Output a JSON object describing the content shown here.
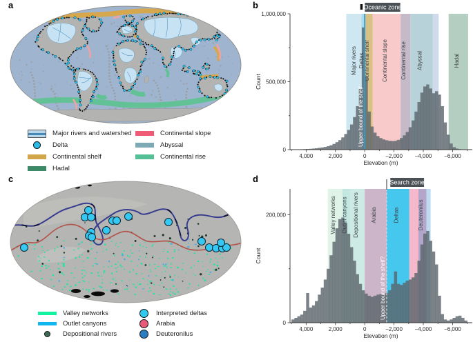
{
  "figure": {
    "panel_labels": {
      "a": "a",
      "b": "b",
      "c": "c",
      "d": "d"
    }
  },
  "legend_a": {
    "left": [
      {
        "label": "Major rivers and watershed",
        "fill": "#b9d7ea",
        "line": "#4689b7"
      },
      {
        "label": "Delta",
        "fill": "#2bbce8"
      },
      {
        "label": "Continental shelf",
        "fill": "#d2a54b"
      },
      {
        "label": "Hadal",
        "fill": "#3e8a68"
      }
    ],
    "right": [
      {
        "label": "Continental slope",
        "fill": "#ef5a75"
      },
      {
        "label": "Abyssal",
        "fill": "#7dabb5"
      },
      {
        "label": "Continental rise",
        "fill": "#55c095"
      }
    ]
  },
  "legend_c": {
    "left": [
      {
        "label": "Valley networks",
        "fill": "#13f2a0"
      },
      {
        "label": "Outlet canyons",
        "fill": "#10b6f0"
      },
      {
        "label": "Depositional rivers",
        "fill": "#3e6b55"
      }
    ],
    "right": [
      {
        "label": "Interpreted deltas",
        "fill": "#2fc9ee"
      },
      {
        "label": "Arabia",
        "fill": "#e85a78"
      },
      {
        "label": "Deuteronilus",
        "fill": "#2b7cc0"
      }
    ]
  },
  "map_a": {
    "ocean_color": "#9fb4cf",
    "land_color": "#b3b3b1",
    "watershed_color": "#c7e2f3",
    "river_color": "#4f94c4",
    "delta_color": "#2ec4f0",
    "shelf_color": "#d6a74c",
    "rise_color": "#63c295",
    "slope_color": "#f0a2a2"
  },
  "map_c": {
    "surface_color": "#b5b5b3",
    "valley_color": "#16e8a0",
    "canyon_color": "#35a8f0",
    "depositional_color": "#1e3a2c",
    "arabia_line_color": "#b2564d",
    "deuteronilus_line_color": "#383c8e",
    "delta_color": "#35c8f2",
    "delta_points": [
      [
        21,
        97
      ],
      [
        114,
        43
      ],
      [
        109,
        53
      ],
      [
        118,
        53
      ],
      [
        149,
        58
      ],
      [
        155,
        58
      ],
      [
        172,
        52
      ],
      [
        140,
        72
      ],
      [
        118,
        75
      ],
      [
        115,
        80
      ],
      [
        119,
        82
      ],
      [
        230,
        60
      ],
      [
        278,
        88
      ],
      [
        289,
        97
      ],
      [
        299,
        98
      ],
      [
        308,
        98
      ],
      [
        314,
        97
      ],
      [
        306,
        90
      ]
    ]
  },
  "chart_data": [
    {
      "id": "b",
      "type": "bar",
      "title": "",
      "xlabel": "Elevation (m)",
      "ylabel": "Count",
      "x_domain": [
        5100,
        -7300
      ],
      "y_domain": [
        0,
        1000000
      ],
      "x_major_ticks": [
        4000,
        2000,
        0,
        -2000,
        -4000,
        -6000
      ],
      "x_minor_step": 1000,
      "y_ticks": [
        {
          "v": 0,
          "label": "0"
        },
        {
          "v": 250000,
          "label": ""
        },
        {
          "v": 500000,
          "label": "500,000"
        },
        {
          "v": 750000,
          "label": ""
        },
        {
          "v": 1000000,
          "label": "1,000,000"
        }
      ],
      "bar_color": "rgba(90,100,106,0.8)",
      "bars": {
        "x_start": 4900,
        "x_step": -200,
        "bin_width": 200,
        "counts": [
          1000,
          1500,
          2000,
          3000,
          4000,
          5000,
          6000,
          8000,
          10000,
          13000,
          16000,
          20000,
          25000,
          32000,
          42000,
          55000,
          70000,
          90000,
          115000,
          145000,
          185000,
          240000,
          320000,
          450000,
          900000,
          540000,
          280000,
          170000,
          125000,
          100000,
          85000,
          75000,
          69000,
          65000,
          63000,
          65000,
          72000,
          85000,
          105000,
          130000,
          165000,
          215000,
          280000,
          350000,
          420000,
          465000,
          480000,
          450000,
          415000,
          430000,
          405000,
          320000,
          200000,
          110000,
          45000,
          18000,
          8000,
          4000,
          2000,
          1000
        ]
      },
      "zones": [
        {
          "label": "Major rivers",
          "from": 1260,
          "to": 0,
          "color": "#cfe7f1"
        },
        {
          "label": "Deltas",
          "from": 220,
          "to": 0,
          "color": "#aedbeb"
        },
        {
          "label": "Continental shelf",
          "from": 0,
          "to": -550,
          "color": "#d9c185"
        },
        {
          "label": "Continental slope",
          "from": -550,
          "to": -2450,
          "color": "#f9caca"
        },
        {
          "label": "Continental rise",
          "from": -2450,
          "to": -3120,
          "color": "#c6bac9"
        },
        {
          "label": "Abyssal",
          "from": -3120,
          "to": -4650,
          "color": "#b7d3d9"
        },
        {
          "label": "",
          "from": -4650,
          "to": -5050,
          "color": "#cfdaeb"
        },
        {
          "label": "Hadal",
          "from": -5730,
          "to": -7060,
          "color": "#b4cfc1"
        }
      ],
      "vline": {
        "x": 0,
        "dash": false,
        "color": "#2d9bd4",
        "label": "Upper bound of the shelf",
        "label_color": "#ffffff"
      },
      "zone_box": {
        "label": "Oceanic zone",
        "from": -10,
        "to": -2430,
        "marker": "square",
        "marker_x": 210,
        "bg": "#4b5054",
        "fg": "#ffffff"
      }
    },
    {
      "id": "d",
      "type": "bar",
      "title": "",
      "xlabel": "Elevation (m)",
      "ylabel": "Count",
      "x_domain": [
        5100,
        -7300
      ],
      "y_domain": [
        0,
        248000
      ],
      "x_major_ticks": [
        4000,
        2000,
        0,
        -2000,
        -4000,
        -6000
      ],
      "x_minor_step": 1000,
      "y_ticks": [
        {
          "v": 0,
          "label": "0"
        },
        {
          "v": 100000,
          "label": ""
        },
        {
          "v": 200000,
          "label": "200,000"
        }
      ],
      "bar_color": "rgba(90,100,106,0.8)",
      "bars": {
        "x_start": 4900,
        "x_step": -200,
        "bin_width": 200,
        "counts": [
          6000,
          9000,
          12000,
          15000,
          22000,
          55000,
          28000,
          32000,
          40000,
          52000,
          65000,
          80000,
          100000,
          125000,
          150000,
          175000,
          192000,
          195000,
          185000,
          165000,
          140000,
          115000,
          90000,
          72000,
          60000,
          54000,
          50000,
          48000,
          50000,
          52000,
          53000,
          52000,
          55000,
          60000,
          72000,
          95000,
          72000,
          70000,
          74000,
          78000,
          80000,
          84000,
          92000,
          115000,
          145000,
          165000,
          170000,
          152000,
          132000,
          108000,
          50000,
          16000,
          6000,
          4000,
          6000,
          9000,
          12000,
          13000,
          9000,
          4000
        ]
      },
      "zones": [
        {
          "label": "Valley networks",
          "from": 2520,
          "to": 1530,
          "color": "#dff3e8"
        },
        {
          "label": "Outlet canyons",
          "from": 1530,
          "to": 980,
          "color": "#c4e8e1"
        },
        {
          "label": "Depositional rivers",
          "from": 980,
          "to": 0,
          "color": "#cdebe4"
        },
        {
          "label": "Arabia",
          "from": 0,
          "to": -1500,
          "color": "#ccb5c8"
        },
        {
          "label": "Deltas",
          "from": -1500,
          "to": -3050,
          "color": "#46c7ee"
        },
        {
          "label": "",
          "from": -3050,
          "to": -3670,
          "color": "#f6b9cb"
        },
        {
          "label": "Deuteronilus",
          "from": -3670,
          "to": -4220,
          "color": "#b4a5cb"
        },
        {
          "label": "",
          "from": -4220,
          "to": -4500,
          "color": "#bedaf1"
        }
      ],
      "vline": {
        "x": -1500,
        "dash": true,
        "color": "#dcdcdc",
        "label": "Upper bound of the shelf?",
        "label_color": "#ffffff"
      },
      "zone_box": {
        "label": "Search zone",
        "from": -1750,
        "to": -4050,
        "marker": "tick",
        "marker_x": -1500,
        "bg": "#4b5054",
        "fg": "#ffffff"
      }
    }
  ]
}
